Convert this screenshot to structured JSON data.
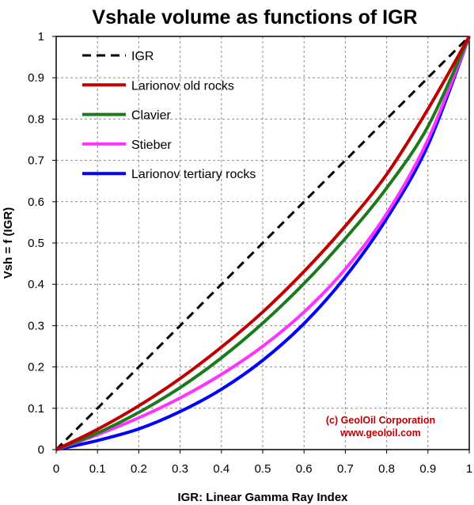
{
  "chart_data": {
    "type": "line",
    "title": "Vshale volume as functions of IGR",
    "xlabel": "IGR: Linear Gamma Ray Index",
    "ylabel": "Vsh = f (IGR)",
    "xlim": [
      0,
      1
    ],
    "ylim": [
      0,
      1
    ],
    "x_ticks": [
      "0",
      "0.1",
      "0.2",
      "0.3",
      "0.4",
      "0.5",
      "0.6",
      "0.7",
      "0.8",
      "0.9",
      "1"
    ],
    "y_ticks": [
      "0",
      "0.1",
      "0.2",
      "0.3",
      "0.4",
      "0.5",
      "0.6",
      "0.7",
      "0.8",
      "0.9",
      "1"
    ],
    "grid": true,
    "legend_position": "top-left",
    "x": [
      0,
      0.1,
      0.2,
      0.3,
      0.4,
      0.5,
      0.6,
      0.7,
      0.8,
      0.9,
      1
    ],
    "series": [
      {
        "name": "IGR",
        "color": "#000000",
        "style": "dashed",
        "values": [
          0,
          0.1,
          0.2,
          0.3,
          0.4,
          0.5,
          0.6,
          0.7,
          0.8,
          0.9,
          1
        ]
      },
      {
        "name": "Larionov old rocks",
        "color": "#c00000",
        "style": "solid",
        "values": [
          0,
          0.049,
          0.106,
          0.172,
          0.248,
          0.333,
          0.431,
          0.541,
          0.666,
          0.824,
          1
        ]
      },
      {
        "name": "Clavier",
        "color": "#1b7a1b",
        "style": "solid",
        "values": [
          0,
          0.04,
          0.09,
          0.15,
          0.222,
          0.306,
          0.402,
          0.511,
          0.633,
          0.782,
          1
        ]
      },
      {
        "name": "Stieber",
        "color": "#ff33ff",
        "style": "solid",
        "values": [
          0,
          0.036,
          0.077,
          0.125,
          0.182,
          0.25,
          0.333,
          0.437,
          0.571,
          0.75,
          1
        ]
      },
      {
        "name": "Larionov tertiary rocks",
        "color": "#0000ff",
        "style": "solid",
        "values": [
          0,
          0.022,
          0.05,
          0.092,
          0.146,
          0.216,
          0.305,
          0.418,
          0.559,
          0.737,
          1
        ]
      }
    ],
    "credit": [
      "(c) GeolOil Corporation",
      "www.geoloil.com"
    ]
  }
}
